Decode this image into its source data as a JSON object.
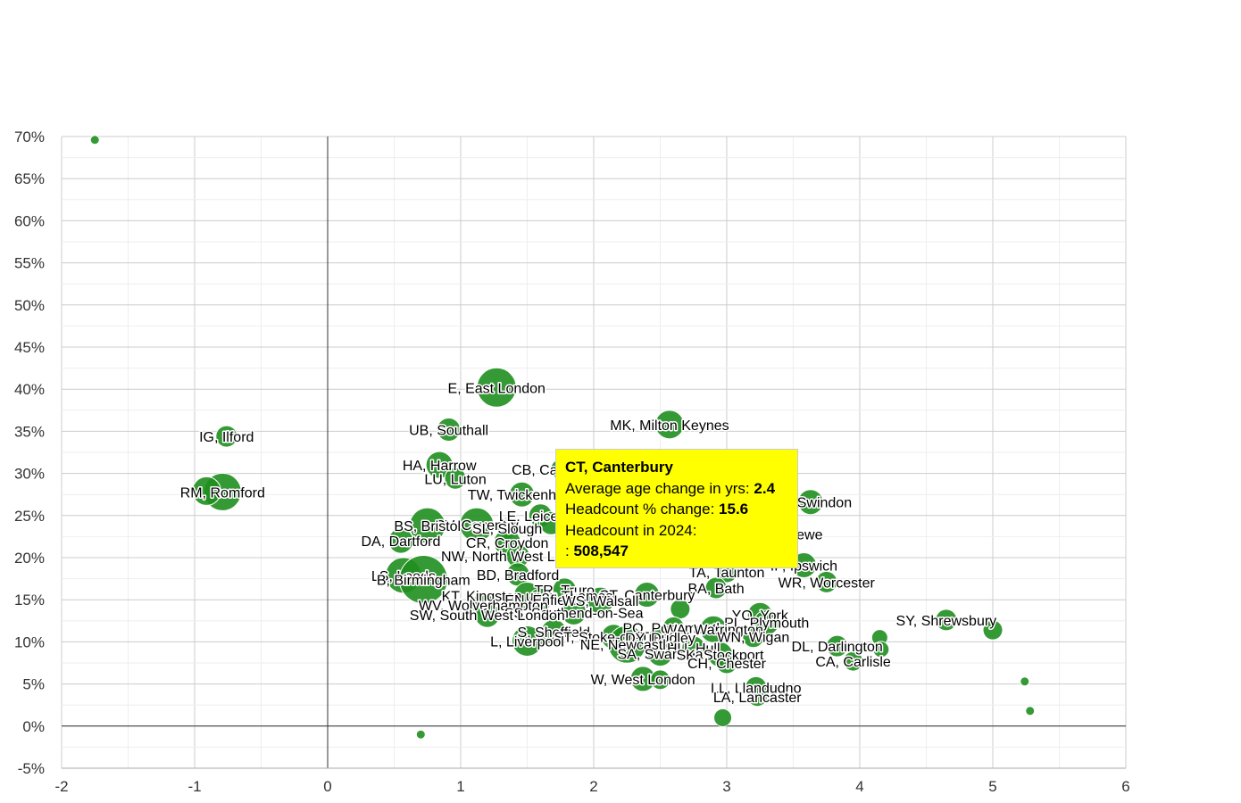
{
  "chart_data": {
    "type": "scatter",
    "xlim": [
      -2,
      6
    ],
    "ylim": [
      -5,
      70
    ],
    "x_ticks": [
      "-2",
      "-1",
      "0",
      "1",
      "2",
      "3",
      "4",
      "5",
      "6"
    ],
    "y_ticks": [
      "70%",
      "65%",
      "60%",
      "55%",
      "50%",
      "45%",
      "40%",
      "35%",
      "30%",
      "25%",
      "20%",
      "15%",
      "10%",
      "5%",
      "0%",
      "-5%"
    ],
    "grid": true,
    "bubble_color": "#1f8f1f",
    "points": [
      {
        "label": "E, East London",
        "x": 1.27,
        "y": 40.2,
        "r": 22
      },
      {
        "label": "MK, Milton Keynes",
        "x": 2.57,
        "y": 35.8,
        "r": 16
      },
      {
        "label": "UB, Southall",
        "x": 0.91,
        "y": 35.2,
        "r": 13
      },
      {
        "label": "IG, Ilford",
        "x": -0.76,
        "y": 34.4,
        "r": 12
      },
      {
        "label": "HA, Harrow",
        "x": 0.84,
        "y": 31.0,
        "r": 15
      },
      {
        "label": "CB, Cambridge",
        "x": 1.75,
        "y": 30.5,
        "r": 11
      },
      {
        "label": "LU, Luton",
        "x": 0.96,
        "y": 29.4,
        "r": 12
      },
      {
        "label": "RM, Romford",
        "x": -0.79,
        "y": 27.8,
        "r": 21
      },
      {
        "label": "",
        "x": -0.91,
        "y": 27.9,
        "r": 16
      },
      {
        "label": "TW, Twickenham",
        "x": 1.46,
        "y": 27.5,
        "r": 14
      },
      {
        "label": "SN, Swindon",
        "x": 3.63,
        "y": 26.6,
        "r": 14
      },
      {
        "label": "LE, Leicester",
        "x": 1.6,
        "y": 25.0,
        "r": 13
      },
      {
        "label": "",
        "x": 1.68,
        "y": 24.1,
        "r": 13
      },
      {
        "label": "CV, Coventry",
        "x": 1.12,
        "y": 23.9,
        "r": 19
      },
      {
        "label": "BS, Bristol",
        "x": 0.75,
        "y": 23.8,
        "r": 20
      },
      {
        "label": "SL, Slough",
        "x": 1.35,
        "y": 23.5,
        "r": 12
      },
      {
        "label": "CW, Crewe",
        "x": 3.45,
        "y": 22.8,
        "r": 14
      },
      {
        "label": "DA, Dartford",
        "x": 0.55,
        "y": 22.0,
        "r": 14
      },
      {
        "label": "CR, Croydon",
        "x": 1.35,
        "y": 21.8,
        "r": 15
      },
      {
        "label": "NW, North West London",
        "x": 1.43,
        "y": 20.2,
        "r": 13
      },
      {
        "label": "IP, Ipswich",
        "x": 3.58,
        "y": 19.1,
        "r": 14
      },
      {
        "label": "BD, Bradford",
        "x": 1.43,
        "y": 18.0,
        "r": 13
      },
      {
        "label": "LS, Leeds",
        "x": 0.57,
        "y": 17.9,
        "r": 20
      },
      {
        "label": "B, Birmingham",
        "x": 0.72,
        "y": 17.4,
        "r": 27
      },
      {
        "label": "TA, Taunton",
        "x": 3.0,
        "y": 18.3,
        "r": 12
      },
      {
        "label": "WR, Worcester",
        "x": 3.75,
        "y": 17.1,
        "r": 12
      },
      {
        "label": "TR, Truro",
        "x": 1.78,
        "y": 16.2,
        "r": 13
      },
      {
        "label": "BA, Bath",
        "x": 2.92,
        "y": 16.4,
        "r": 12
      },
      {
        "label": "CT, Canterbury",
        "x": 2.4,
        "y": 15.6,
        "r": 14
      },
      {
        "label": "KT, Kingston upon Thames",
        "x": 1.5,
        "y": 15.5,
        "r": 15
      },
      {
        "label": "EN, Enfield",
        "x": 1.6,
        "y": 15.0,
        "r": 13
      },
      {
        "label": "WS, Walsall",
        "x": 2.05,
        "y": 14.9,
        "r": 15
      },
      {
        "label": "WV, Wolverhampton",
        "x": 1.17,
        "y": 14.4,
        "r": 13
      },
      {
        "label": "SS, Southend-on-Sea",
        "x": 1.85,
        "y": 13.5,
        "r": 14
      },
      {
        "label": "SW, South West London",
        "x": 1.2,
        "y": 13.2,
        "r": 14
      },
      {
        "label": "",
        "x": 2.65,
        "y": 13.9,
        "r": 11
      },
      {
        "label": "YO, York",
        "x": 3.25,
        "y": 13.2,
        "r": 14
      },
      {
        "label": "PL, Plymouth",
        "x": 3.3,
        "y": 12.3,
        "r": 14
      },
      {
        "label": "SY, Shrewsbury",
        "x": 4.65,
        "y": 12.6,
        "r": 12
      },
      {
        "label": "PO, Portsmouth",
        "x": 2.6,
        "y": 11.7,
        "r": 12
      },
      {
        "label": "WA, Warrington",
        "x": 2.9,
        "y": 11.5,
        "r": 15
      },
      {
        "label": "",
        "x": 5.0,
        "y": 11.4,
        "r": 11
      },
      {
        "label": "S, Sheffield",
        "x": 1.7,
        "y": 11.2,
        "r": 14
      },
      {
        "label": "WN, Wigan",
        "x": 3.2,
        "y": 10.6,
        "r": 12
      },
      {
        "label": "",
        "x": 4.15,
        "y": 10.5,
        "r": 9
      },
      {
        "label": "ST, Stoke-on-Trent",
        "x": 2.15,
        "y": 10.6,
        "r": 14
      },
      {
        "label": "DY, Dudley",
        "x": 2.5,
        "y": 10.5,
        "r": 13
      },
      {
        "label": "L, Liverpool",
        "x": 1.5,
        "y": 10.1,
        "r": 17
      },
      {
        "label": "NE, Newcastle",
        "x": 2.25,
        "y": 9.7,
        "r": 21
      },
      {
        "label": "DL, Darlington",
        "x": 3.83,
        "y": 9.5,
        "r": 12
      },
      {
        "label": "",
        "x": 4.16,
        "y": 9.1,
        "r": 9
      },
      {
        "label": "HU, Hull",
        "x": 2.75,
        "y": 9.3,
        "r": 13
      },
      {
        "label": "SA, Swansea",
        "x": 2.5,
        "y": 8.6,
        "r": 14
      },
      {
        "label": "SK, Stockport",
        "x": 2.95,
        "y": 8.5,
        "r": 14
      },
      {
        "label": "CH, Chester",
        "x": 3.0,
        "y": 7.5,
        "r": 12
      },
      {
        "label": "CA, Carlisle",
        "x": 3.95,
        "y": 7.7,
        "r": 11
      },
      {
        "label": "W, West London",
        "x": 2.37,
        "y": 5.6,
        "r": 14
      },
      {
        "label": "",
        "x": 2.5,
        "y": 5.5,
        "r": 11
      },
      {
        "label": "LL, Llandudno",
        "x": 3.22,
        "y": 4.6,
        "r": 12
      },
      {
        "label": "",
        "x": 5.24,
        "y": 5.3,
        "r": 5
      },
      {
        "label": "LA, Lancaster",
        "x": 3.23,
        "y": 3.5,
        "r": 11
      },
      {
        "label": "",
        "x": 2.97,
        "y": 1.0,
        "r": 10
      },
      {
        "label": "",
        "x": 5.28,
        "y": 1.8,
        "r": 5
      },
      {
        "label": "",
        "x": -1.75,
        "y": 69.6,
        "r": 5
      },
      {
        "label": "",
        "x": 0.7,
        "y": -1.0,
        "r": 5
      }
    ]
  },
  "tooltip": {
    "title": "CT, Canterbury",
    "line1_label": "Average age change in yrs:",
    "line1_value": "2.4",
    "line2_label": "Headcount % change:",
    "line2_value": "15.6",
    "line3_label": "Headcount in 2024:",
    "line4_label": ":",
    "line4_value": "508,547"
  }
}
